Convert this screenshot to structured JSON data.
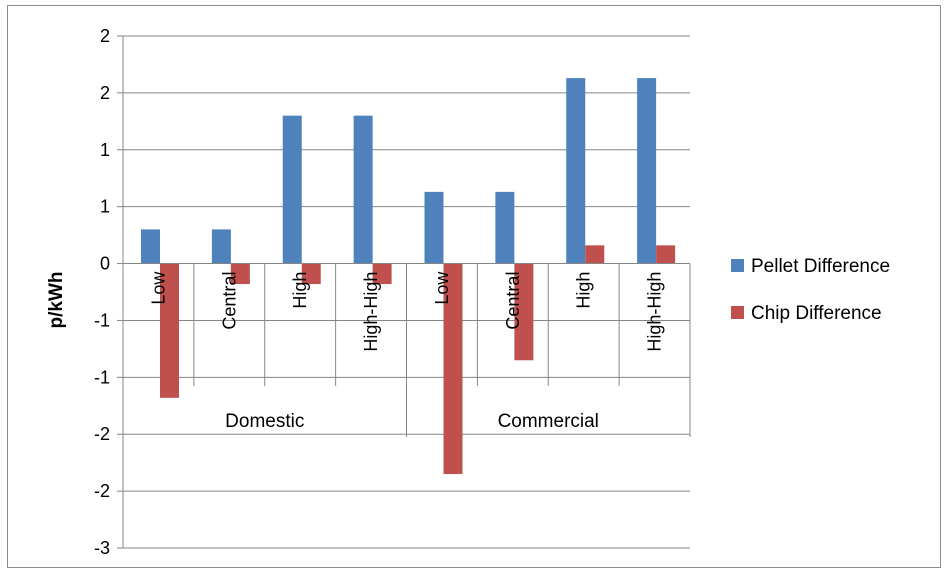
{
  "chart_data": {
    "type": "bar",
    "ylabel": "p/kWh",
    "ytick_labels": [
      "2",
      "2",
      "1",
      "1",
      "0",
      "-1",
      "-1",
      "-2",
      "-2",
      "-3"
    ],
    "ylim": [
      -2.5,
      2.0
    ],
    "grid": true,
    "legend_position": "right",
    "groups": [
      {
        "name": "Domestic",
        "categories": [
          "Low",
          "Central",
          "High",
          "High-High"
        ]
      },
      {
        "name": "Commercial",
        "categories": [
          "Low",
          "Central",
          "High",
          "High-High"
        ]
      }
    ],
    "categories": [
      "Low",
      "Central",
      "High",
      "High-High",
      "Low",
      "Central",
      "High",
      "High-High"
    ],
    "series": [
      {
        "name": "Pellet Difference",
        "color": "#4F81BD",
        "values": [
          0.3,
          0.3,
          1.3,
          1.3,
          0.63,
          0.63,
          1.63,
          1.63
        ]
      },
      {
        "name": "Chip Difference",
        "color": "#C0504D",
        "values": [
          -1.18,
          -0.18,
          -0.18,
          -0.18,
          -1.85,
          -0.85,
          0.16,
          0.16
        ]
      }
    ]
  }
}
